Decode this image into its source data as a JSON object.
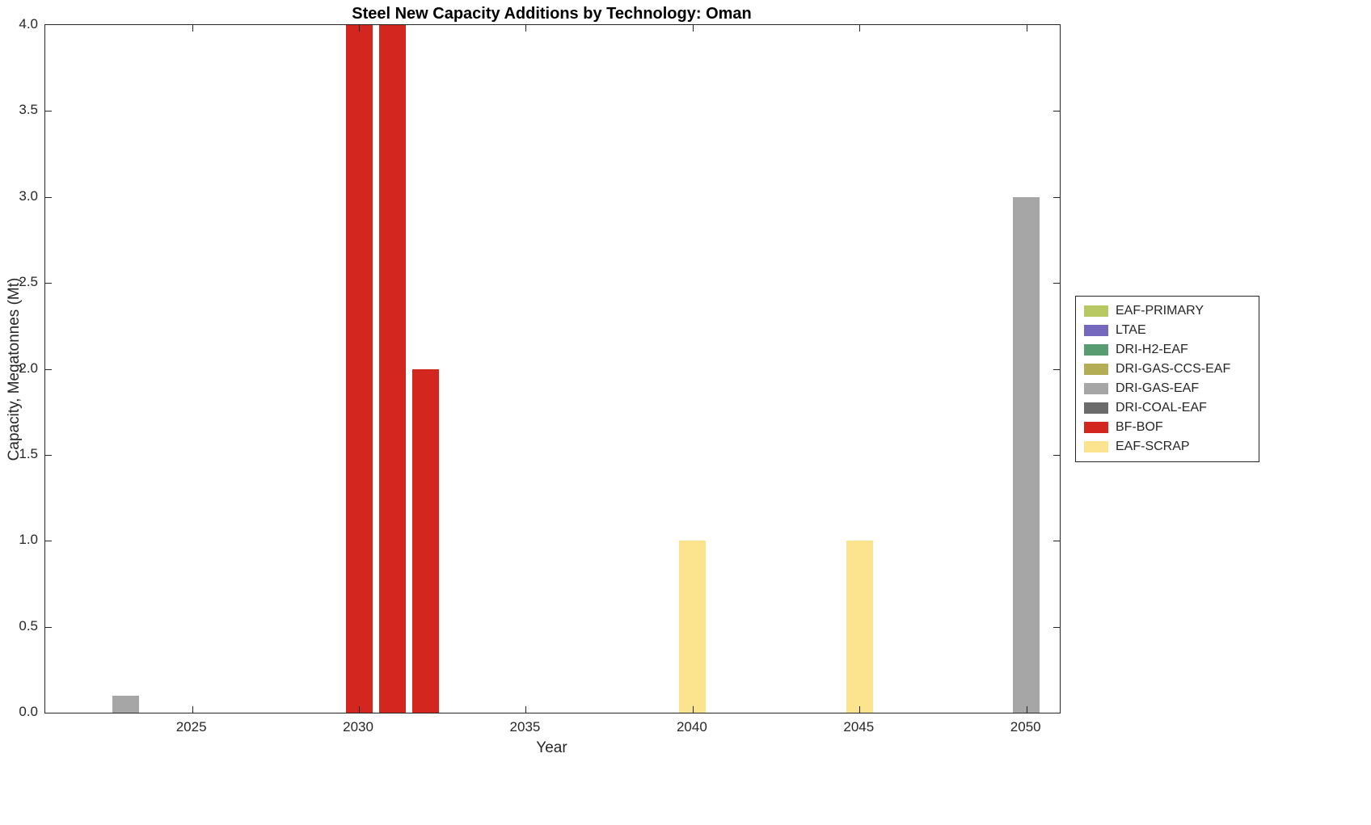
{
  "chart_data": {
    "type": "bar",
    "title": "Steel New Capacity Additions by Technology: Oman",
    "xlabel": "Year",
    "ylabel": "Capacity, Megatonnes (Mt)",
    "xlim": [
      2020.6,
      2051.0
    ],
    "ylim": [
      0,
      4
    ],
    "xticks": [
      2025,
      2030,
      2035,
      2040,
      2045,
      2050
    ],
    "yticks": [
      0,
      0.5,
      1,
      1.5,
      2,
      2.5,
      3,
      3.5,
      4
    ],
    "grid": false,
    "legend_position": "right-outside",
    "bar_width_years": 0.8,
    "legend": [
      {
        "label": "EAF-PRIMARY",
        "color": "#b8c963"
      },
      {
        "label": "LTAE",
        "color": "#7569bf"
      },
      {
        "label": "DRI-H2-EAF",
        "color": "#5a9c72"
      },
      {
        "label": "DRI-GAS-CCS-EAF",
        "color": "#b3ad55"
      },
      {
        "label": "DRI-GAS-EAF",
        "color": "#a6a6a6"
      },
      {
        "label": "DRI-COAL-EAF",
        "color": "#6b6b6b"
      },
      {
        "label": "BF-BOF",
        "color": "#d3261e"
      },
      {
        "label": "EAF-SCRAP",
        "color": "#fce38e"
      }
    ],
    "bars": [
      {
        "year": 2023,
        "technology": "DRI-GAS-EAF",
        "value": 0.1
      },
      {
        "year": 2030,
        "technology": "BF-BOF",
        "value": 4.0
      },
      {
        "year": 2031,
        "technology": "BF-BOF",
        "value": 4.0
      },
      {
        "year": 2032,
        "technology": "BF-BOF",
        "value": 2.0
      },
      {
        "year": 2040,
        "technology": "EAF-SCRAP",
        "value": 1.0
      },
      {
        "year": 2045,
        "technology": "EAF-SCRAP",
        "value": 1.0
      },
      {
        "year": 2050,
        "technology": "DRI-GAS-EAF",
        "value": 3.0
      }
    ]
  }
}
